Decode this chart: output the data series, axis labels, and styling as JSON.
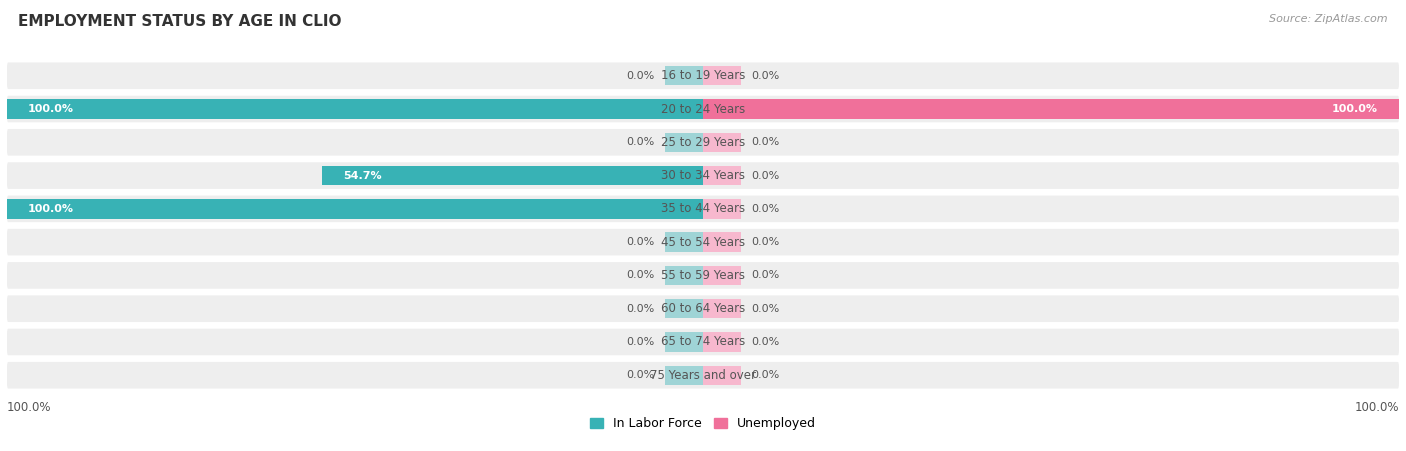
{
  "title": "EMPLOYMENT STATUS BY AGE IN CLIO",
  "source": "Source: ZipAtlas.com",
  "categories": [
    "16 to 19 Years",
    "20 to 24 Years",
    "25 to 29 Years",
    "30 to 34 Years",
    "35 to 44 Years",
    "45 to 54 Years",
    "55 to 59 Years",
    "60 to 64 Years",
    "65 to 74 Years",
    "75 Years and over"
  ],
  "labor_force": [
    0.0,
    100.0,
    0.0,
    54.7,
    100.0,
    0.0,
    0.0,
    0.0,
    0.0,
    0.0
  ],
  "unemployed": [
    0.0,
    100.0,
    0.0,
    0.0,
    0.0,
    0.0,
    0.0,
    0.0,
    0.0,
    0.0
  ],
  "labor_force_color": "#38b2b5",
  "labor_force_light_color": "#9fd4d6",
  "unemployed_color": "#f0709a",
  "unemployed_light_color": "#f7b8ce",
  "bar_bg_color": "#ebebeb",
  "row_bg_even": "#f7f7f7",
  "row_bg_odd": "#f0f0f0",
  "label_color_dark": "#555555",
  "label_color_white": "#ffffff",
  "title_color": "#333333",
  "source_color": "#999999",
  "legend_label_labor": "In Labor Force",
  "legend_label_unemployed": "Unemployed",
  "bar_height": 0.58,
  "stub_size": 5.5,
  "fig_bg_color": "#ffffff"
}
